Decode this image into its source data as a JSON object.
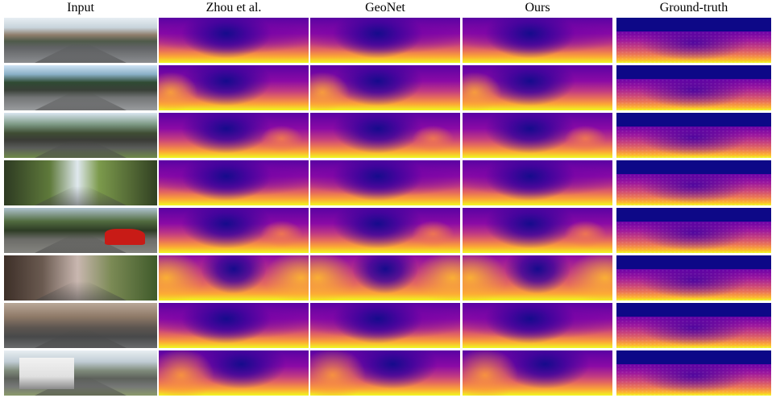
{
  "columns": [
    "Input",
    "Zhou et al.",
    "GeoNet",
    "Ours",
    "Ground-truth"
  ],
  "rows": 8
}
